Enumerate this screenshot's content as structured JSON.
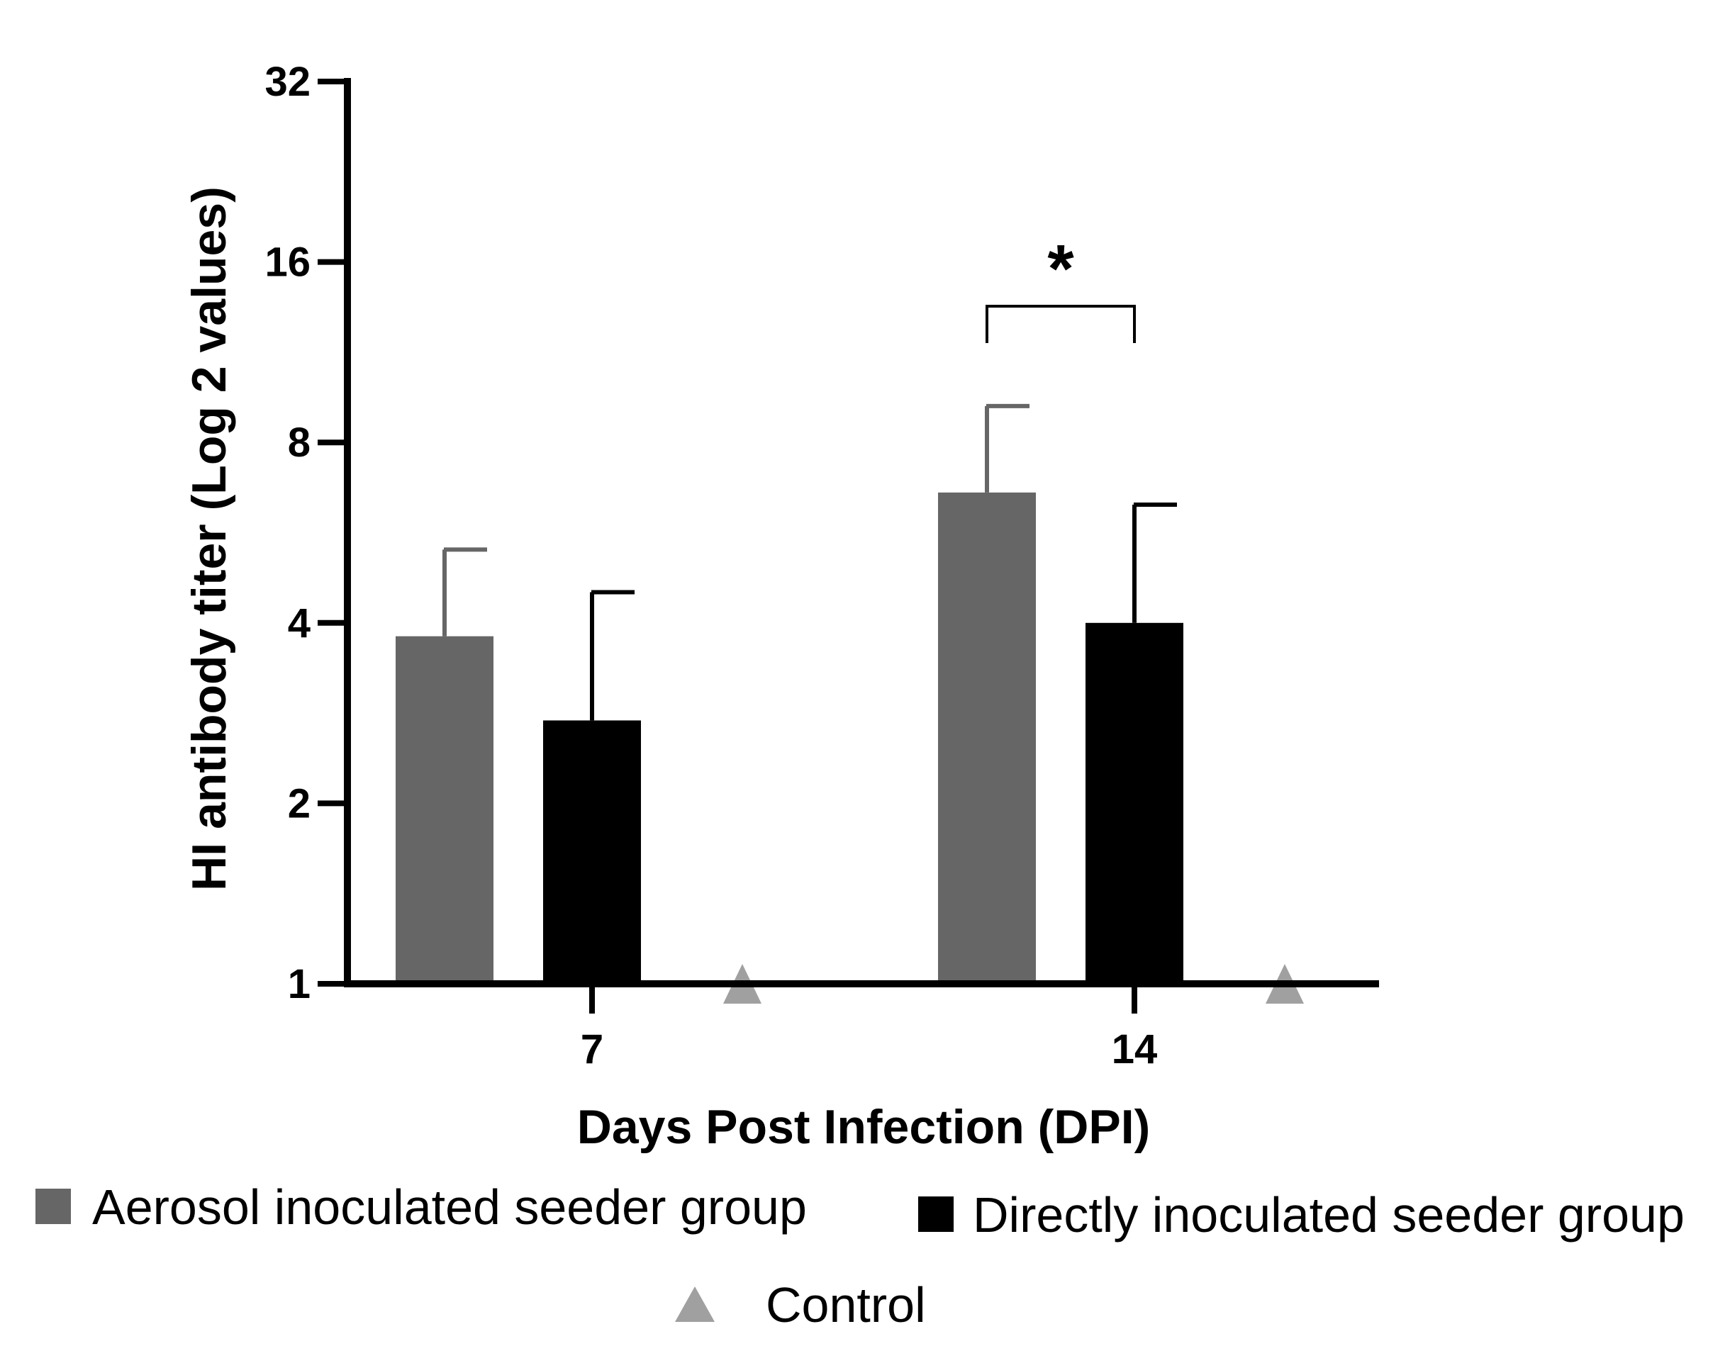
{
  "chart_data": {
    "type": "bar",
    "title": "",
    "xlabel": "Days Post Infection (DPI)",
    "ylabel": "HI antibody titer (Log 2 values)",
    "y_scale": "log2",
    "ylim": [
      1,
      32
    ],
    "yticks": [
      1,
      2,
      4,
      8,
      16,
      32
    ],
    "ytick_labels": [
      "1",
      "2",
      "4",
      "8",
      "16",
      "32"
    ],
    "categories": [
      "7",
      "14"
    ],
    "series": [
      {
        "name": "Aerosol inoculated seeder group",
        "kind": "bar",
        "color": "#666666",
        "values": [
          3.8,
          6.6
        ],
        "error_upper": [
          5.3,
          9.2
        ]
      },
      {
        "name": "Directly inoculated seeder group",
        "kind": "bar",
        "color": "#000000",
        "values": [
          2.75,
          4.0
        ],
        "error_upper": [
          4.5,
          6.3
        ]
      },
      {
        "name": "Control",
        "kind": "marker",
        "marker": "triangle",
        "color": "#a0a0a0",
        "values": [
          1,
          1
        ]
      }
    ],
    "annotations": [
      {
        "text": "*",
        "category": "14",
        "between_series": [
          0,
          1
        ],
        "bracket_level": 13.5
      }
    ],
    "legend": {
      "placement": "bottom",
      "items": [
        {
          "label": "Aerosol inoculated seeder group",
          "marker": "square",
          "color": "#666666"
        },
        {
          "label": "Directly inoculated seeder group",
          "marker": "square",
          "color": "#000000"
        },
        {
          "label": "Control",
          "marker": "triangle",
          "color": "#a0a0a0"
        }
      ]
    },
    "grid": false
  }
}
